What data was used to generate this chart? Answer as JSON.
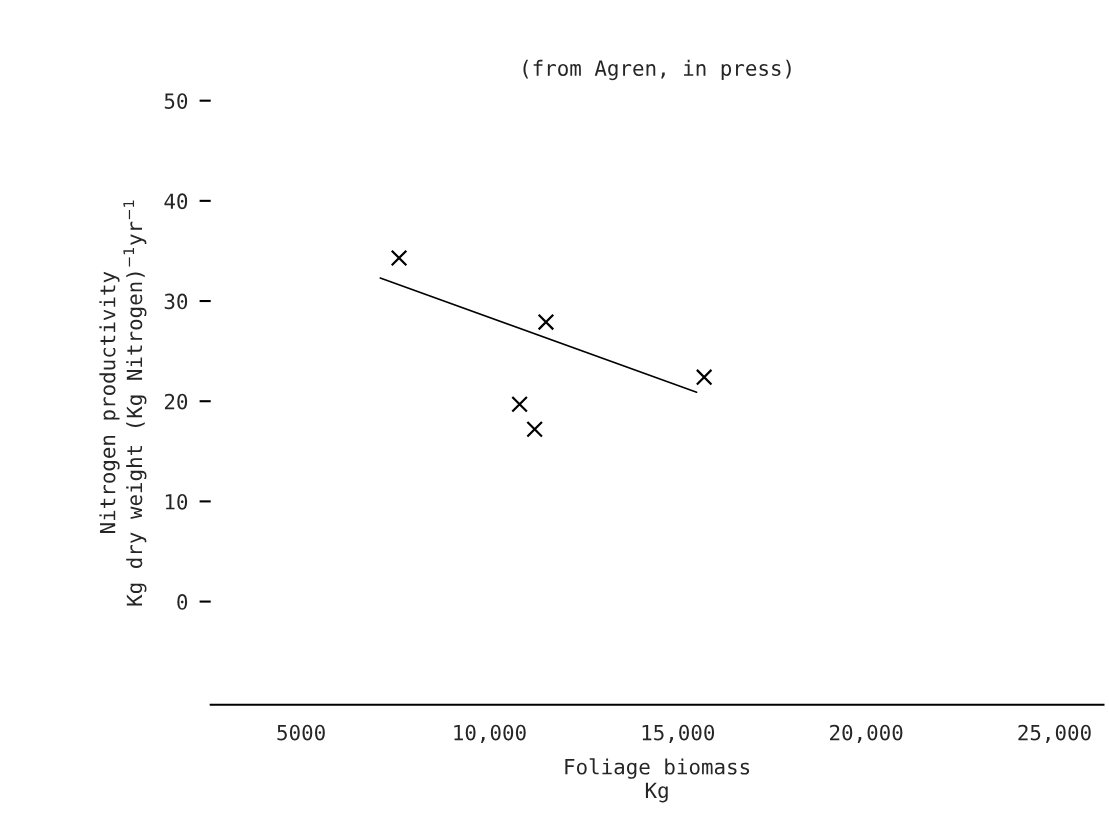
{
  "chart_data": {
    "type": "scatter",
    "title": "(from Agren, in press)",
    "xlabel": "Foliage biomass\nKg",
    "ylabel": "Nitrogen productivity\nKg dry weight (Kg Nitrogen)$^{−1}$yr$^{−1}$",
    "series": [
      {
        "color": "#000000",
        "marker": "cross",
        "x": [
          7600,
          11500,
          15700,
          10800,
          11200
        ],
        "values": [
          34.3,
          27.9,
          22.4,
          19.7,
          17.2
        ]
      },
      {
        "type": "line",
        "color": "#000000",
        "marker": "none",
        "line_style": "solid",
        "x": [
          7100,
          15500
        ],
        "values": [
          32.3,
          20.9
        ]
      }
    ],
    "xlim": [
      2600,
      26300
    ],
    "ylim": [
      -10.3,
      50
    ],
    "xticks": [
      {
        "value": 5000,
        "label": "5000"
      },
      {
        "value": 10000,
        "label": "10,000"
      },
      {
        "value": 15000,
        "label": "15,000"
      },
      {
        "value": 20000,
        "label": "20,000"
      },
      {
        "value": 25000,
        "label": "25,000"
      }
    ],
    "yticks": [
      0,
      10,
      20,
      30,
      40,
      50
    ],
    "grid": false,
    "legend": false
  }
}
